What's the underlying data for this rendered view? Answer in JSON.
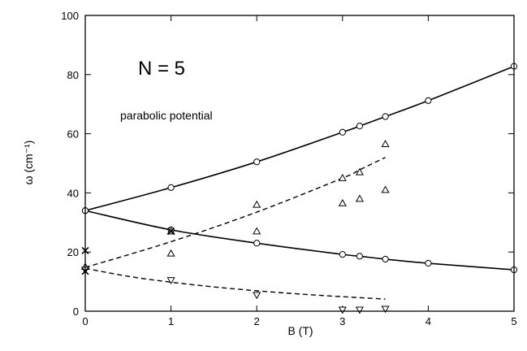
{
  "chart_data": {
    "type": "scatter",
    "title": "",
    "xlabel": "B (T)",
    "ylabel": "ω (cm⁻¹)",
    "xlim": [
      0,
      5
    ],
    "ylim": [
      0,
      100
    ],
    "x_ticks": [
      0,
      1,
      2,
      3,
      4,
      5
    ],
    "y_ticks": [
      0,
      20,
      40,
      60,
      80,
      100
    ],
    "grid": false,
    "annotations": {
      "main": "N = 5",
      "sub": "parabolic potential"
    },
    "series": [
      {
        "marker": "circle",
        "line": "solid",
        "points": [
          [
            0,
            34
          ],
          [
            1,
            41.8
          ],
          [
            2,
            50.5
          ],
          [
            3,
            60.5
          ],
          [
            3.2,
            62.6
          ],
          [
            3.5,
            65.8
          ],
          [
            4,
            71.2
          ],
          [
            5,
            82.8
          ]
        ]
      },
      {
        "marker": "circle",
        "line": "solid",
        "points": [
          [
            0,
            34
          ],
          [
            1,
            27.5
          ],
          [
            2,
            23.0
          ],
          [
            3,
            19.2
          ],
          [
            3.2,
            18.6
          ],
          [
            3.5,
            17.6
          ],
          [
            4,
            16.2
          ],
          [
            5,
            14.0
          ]
        ]
      },
      {
        "marker": "triangle-up",
        "line": "dashed",
        "line_x_range": [
          0,
          3.5
        ],
        "line_y": [
          14.8,
          23.5,
          33.5,
          45.0,
          47.8,
          52.0
        ],
        "line_x": [
          0,
          1,
          2,
          3,
          3.2,
          3.5
        ],
        "points": [
          [
            0,
            15
          ],
          [
            1,
            19.5
          ],
          [
            1,
            27
          ],
          [
            2,
            27
          ],
          [
            2,
            36
          ],
          [
            3,
            36.5
          ],
          [
            3,
            45
          ],
          [
            3.2,
            38
          ],
          [
            3.2,
            47
          ],
          [
            3.5,
            41
          ],
          [
            3.5,
            56.5
          ]
        ]
      },
      {
        "marker": "triangle-down",
        "line": "dashed",
        "line_x": [
          0,
          0.5,
          1,
          1.5,
          2,
          2.5,
          3,
          3.5
        ],
        "line_y": [
          14.5,
          11.8,
          9.8,
          8.2,
          6.9,
          5.8,
          4.9,
          4.1
        ],
        "points": [
          [
            0,
            14
          ],
          [
            1,
            10.5
          ],
          [
            2,
            5.5
          ],
          [
            3,
            0.5
          ],
          [
            3.2,
            0.5
          ],
          [
            3.5,
            0.8
          ]
        ]
      },
      {
        "marker": "cross",
        "line": "none",
        "points": [
          [
            0,
            20.5
          ],
          [
            0,
            13.5
          ],
          [
            1,
            27
          ]
        ]
      }
    ]
  }
}
